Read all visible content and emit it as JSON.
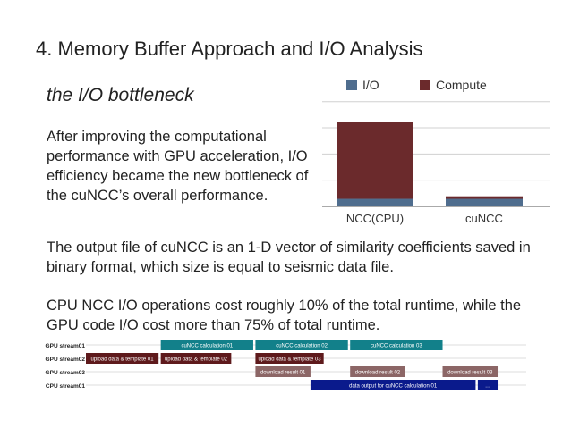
{
  "slide": {
    "title": "4. Memory Buffer Approach and I/O Analysis",
    "subtitle": "the I/O bottleneck",
    "paragraphs": [
      "After improving the computational performance with GPU acceleration, I/O efficiency became the new bottleneck of the cuNCC’s overall performance.",
      "The output file of cuNCC is an 1-D vector of similarity coefficients saved in binary format, which size is equal to seismic data file.",
      "CPU NCC I/O operations cost roughly 10% of the total runtime, while the GPU code I/O cost more than 75% of total runtime."
    ]
  },
  "colors": {
    "io": "#4f6d8e",
    "compute": "#6b2a2c",
    "dark_red": "#5e1a1c",
    "teal": "#12808a",
    "gray_red": "#8c6666",
    "navy": "#0a1a8c"
  },
  "chart_data": [
    {
      "type": "bar",
      "stacked": true,
      "categories": [
        "NCC(CPU)",
        "cuNCC"
      ],
      "series": [
        {
          "name": "I/O",
          "values": [
            9,
            9
          ]
        },
        {
          "name": "Compute",
          "values": [
            91,
            3
          ]
        }
      ],
      "ylim": [
        0,
        137
      ],
      "grid": true,
      "legend": "top"
    },
    {
      "type": "timeline",
      "rows": [
        "GPU stream01",
        "GPU stream02",
        "GPU stream03",
        "CPU stream01"
      ],
      "xlim": [
        0,
        1000
      ],
      "bars": [
        {
          "row": 0,
          "start": 170,
          "end": 380,
          "label": "cuNCC calculation 01",
          "color": "teal"
        },
        {
          "row": 0,
          "start": 385,
          "end": 595,
          "label": "cuNCC calculation 02",
          "color": "teal"
        },
        {
          "row": 0,
          "start": 600,
          "end": 810,
          "label": "cuNCC calculation 03",
          "color": "teal"
        },
        {
          "row": 1,
          "start": 0,
          "end": 165,
          "label": "upload data & template 01",
          "color": "dark_red"
        },
        {
          "row": 1,
          "start": 170,
          "end": 330,
          "label": "upload data & template 02",
          "color": "dark_red"
        },
        {
          "row": 1,
          "start": 385,
          "end": 540,
          "label": "upload data & template 03",
          "color": "dark_red"
        },
        {
          "row": 2,
          "start": 385,
          "end": 510,
          "label": "download result 01",
          "color": "gray_red"
        },
        {
          "row": 2,
          "start": 600,
          "end": 725,
          "label": "download result 02",
          "color": "gray_red"
        },
        {
          "row": 2,
          "start": 810,
          "end": 935,
          "label": "download result 03",
          "color": "gray_red"
        },
        {
          "row": 3,
          "start": 510,
          "end": 885,
          "label": "data output for cuNCC calculation 01",
          "color": "navy"
        },
        {
          "row": 3,
          "start": 890,
          "end": 935,
          "label": "…",
          "color": "navy"
        }
      ]
    }
  ]
}
